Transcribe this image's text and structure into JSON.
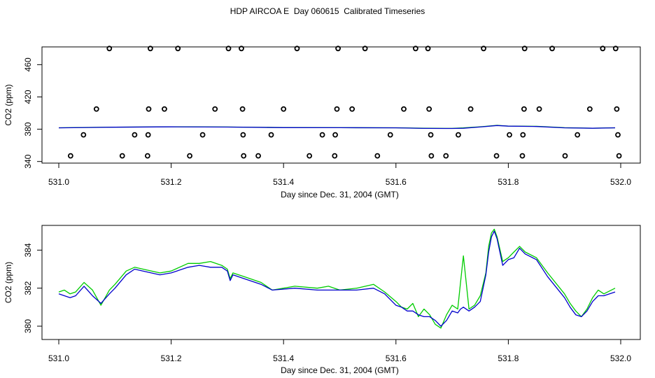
{
  "title": "HDP AIRCOA E  Day 060615  Calibrated Timeseries",
  "colors": {
    "series_a": "#00cc00",
    "series_b": "#0000cc",
    "points": "#000000"
  },
  "chart_data": [
    {
      "type": "scatter",
      "xlabel": "Day since Dec. 31, 2004 (GMT)",
      "ylabel": "CO2 (ppm)",
      "xlim": [
        531.0,
        532.0
      ],
      "ylim": [
        338,
        482
      ],
      "x_ticks": [
        "531.0",
        "531.2",
        "531.4",
        "531.6",
        "531.8",
        "532.0"
      ],
      "y_ticks": [
        "340",
        "380",
        "420",
        "460"
      ],
      "points": [
        {
          "x": 531.09,
          "y": 480
        },
        {
          "x": 531.163,
          "y": 480
        },
        {
          "x": 531.212,
          "y": 480
        },
        {
          "x": 531.302,
          "y": 480
        },
        {
          "x": 531.325,
          "y": 480
        },
        {
          "x": 531.424,
          "y": 480
        },
        {
          "x": 531.497,
          "y": 480
        },
        {
          "x": 531.545,
          "y": 480
        },
        {
          "x": 531.635,
          "y": 480
        },
        {
          "x": 531.657,
          "y": 480
        },
        {
          "x": 531.756,
          "y": 480
        },
        {
          "x": 531.829,
          "y": 480
        },
        {
          "x": 531.878,
          "y": 480
        },
        {
          "x": 531.968,
          "y": 480
        },
        {
          "x": 531.991,
          "y": 480
        },
        {
          "x": 531.067,
          "y": 405
        },
        {
          "x": 531.16,
          "y": 405
        },
        {
          "x": 531.188,
          "y": 405
        },
        {
          "x": 531.278,
          "y": 405
        },
        {
          "x": 531.327,
          "y": 405
        },
        {
          "x": 531.4,
          "y": 405
        },
        {
          "x": 531.495,
          "y": 405
        },
        {
          "x": 531.522,
          "y": 405
        },
        {
          "x": 531.614,
          "y": 405
        },
        {
          "x": 531.659,
          "y": 405
        },
        {
          "x": 531.733,
          "y": 405
        },
        {
          "x": 531.828,
          "y": 405
        },
        {
          "x": 531.855,
          "y": 405
        },
        {
          "x": 531.945,
          "y": 405
        },
        {
          "x": 531.993,
          "y": 405
        },
        {
          "x": 531.044,
          "y": 373
        },
        {
          "x": 531.135,
          "y": 373
        },
        {
          "x": 531.159,
          "y": 373
        },
        {
          "x": 531.256,
          "y": 373
        },
        {
          "x": 531.328,
          "y": 373
        },
        {
          "x": 531.378,
          "y": 373
        },
        {
          "x": 531.469,
          "y": 373
        },
        {
          "x": 531.492,
          "y": 373
        },
        {
          "x": 531.59,
          "y": 373
        },
        {
          "x": 531.662,
          "y": 373
        },
        {
          "x": 531.711,
          "y": 373
        },
        {
          "x": 531.802,
          "y": 373
        },
        {
          "x": 531.826,
          "y": 373
        },
        {
          "x": 531.923,
          "y": 373
        },
        {
          "x": 531.995,
          "y": 373
        },
        {
          "x": 531.021,
          "y": 347
        },
        {
          "x": 531.113,
          "y": 347
        },
        {
          "x": 531.158,
          "y": 347
        },
        {
          "x": 531.233,
          "y": 347
        },
        {
          "x": 531.329,
          "y": 347
        },
        {
          "x": 531.355,
          "y": 347
        },
        {
          "x": 531.446,
          "y": 347
        },
        {
          "x": 531.491,
          "y": 347
        },
        {
          "x": 531.567,
          "y": 347
        },
        {
          "x": 531.663,
          "y": 347
        },
        {
          "x": 531.689,
          "y": 347
        },
        {
          "x": 531.779,
          "y": 347
        },
        {
          "x": 531.825,
          "y": 347
        },
        {
          "x": 531.901,
          "y": 347
        },
        {
          "x": 531.997,
          "y": 347
        }
      ],
      "series": [
        {
          "color": "#00cc00",
          "x": [
            531.0,
            531.1,
            531.2,
            531.3,
            531.4,
            531.5,
            531.6,
            531.65,
            531.7,
            531.72,
            531.75,
            531.78,
            531.8,
            531.85,
            531.9,
            531.95,
            531.99
          ],
          "values": [
            381.8,
            382.6,
            383.0,
            382.8,
            382.1,
            381.9,
            381.8,
            381.2,
            381.0,
            381.6,
            383.0,
            384.8,
            383.9,
            383.6,
            381.9,
            381.3,
            381.8
          ]
        },
        {
          "color": "#0000cc",
          "x": [
            531.0,
            531.1,
            531.2,
            531.3,
            531.4,
            531.5,
            531.6,
            531.65,
            531.7,
            531.72,
            531.75,
            531.78,
            531.8,
            531.85,
            531.9,
            531.95,
            531.99
          ],
          "values": [
            381.7,
            382.5,
            382.9,
            382.7,
            382.0,
            381.9,
            381.7,
            381.0,
            380.9,
            381.2,
            382.8,
            384.6,
            383.8,
            383.4,
            381.7,
            381.2,
            381.7
          ]
        }
      ]
    },
    {
      "type": "line",
      "xlabel": "Day since Dec. 31, 2004 (GMT)",
      "ylabel": "CO2 (ppm)",
      "xlim": [
        531.0,
        532.0
      ],
      "ylim": [
        379.3,
        385.3
      ],
      "x_ticks": [
        "531.0",
        "531.2",
        "531.4",
        "531.6",
        "531.8",
        "532.0"
      ],
      "y_ticks": [
        "380",
        "382",
        "384"
      ],
      "series": [
        {
          "color": "#00cc00",
          "x": [
            531.0,
            531.01,
            531.02,
            531.03,
            531.045,
            531.06,
            531.075,
            531.09,
            531.1,
            531.12,
            531.135,
            531.15,
            531.18,
            531.2,
            531.23,
            531.25,
            531.27,
            531.29,
            531.3,
            531.305,
            531.31,
            531.33,
            531.36,
            531.38,
            531.42,
            531.46,
            531.48,
            531.5,
            531.53,
            531.56,
            531.58,
            531.6,
            531.61,
            531.62,
            531.63,
            531.64,
            531.65,
            531.66,
            531.67,
            531.68,
            531.69,
            531.7,
            531.71,
            531.715,
            531.72,
            531.73,
            531.74,
            531.75,
            531.76,
            531.765,
            531.77,
            531.775,
            531.78,
            531.79,
            531.8,
            531.81,
            531.82,
            531.83,
            531.85,
            531.87,
            531.9,
            531.91,
            531.92,
            531.93,
            531.94,
            531.95,
            531.96,
            531.97,
            531.99
          ],
          "values": [
            381.8,
            381.9,
            381.7,
            381.8,
            382.3,
            381.9,
            381.1,
            381.9,
            382.2,
            382.9,
            383.1,
            383.0,
            382.8,
            382.9,
            383.3,
            383.3,
            383.4,
            383.2,
            383.0,
            382.5,
            382.8,
            382.6,
            382.3,
            381.9,
            382.1,
            382.0,
            382.1,
            381.9,
            382.0,
            382.2,
            381.8,
            381.3,
            381.0,
            380.9,
            381.2,
            380.5,
            380.9,
            380.6,
            380.1,
            379.9,
            380.6,
            381.1,
            380.9,
            382.3,
            383.7,
            380.9,
            381.1,
            381.6,
            382.8,
            384.2,
            384.9,
            385.1,
            384.7,
            383.4,
            383.6,
            383.9,
            384.2,
            383.9,
            383.6,
            382.8,
            381.7,
            381.2,
            380.8,
            380.5,
            380.9,
            381.5,
            381.9,
            381.7,
            382.0
          ]
        },
        {
          "color": "#0000cc",
          "x": [
            531.0,
            531.01,
            531.02,
            531.03,
            531.045,
            531.06,
            531.075,
            531.09,
            531.1,
            531.12,
            531.135,
            531.15,
            531.18,
            531.2,
            531.23,
            531.25,
            531.27,
            531.29,
            531.3,
            531.305,
            531.31,
            531.33,
            531.36,
            531.38,
            531.42,
            531.46,
            531.48,
            531.5,
            531.53,
            531.56,
            531.58,
            531.6,
            531.61,
            531.62,
            531.63,
            531.64,
            531.65,
            531.66,
            531.67,
            531.68,
            531.69,
            531.7,
            531.71,
            531.715,
            531.72,
            531.73,
            531.74,
            531.75,
            531.76,
            531.765,
            531.77,
            531.775,
            531.78,
            531.79,
            531.8,
            531.81,
            531.82,
            531.83,
            531.85,
            531.87,
            531.9,
            531.91,
            531.92,
            531.93,
            531.94,
            531.95,
            531.96,
            531.97,
            531.99
          ],
          "values": [
            381.7,
            381.6,
            381.5,
            381.6,
            382.1,
            381.6,
            381.2,
            381.7,
            382.0,
            382.7,
            383.0,
            382.9,
            382.7,
            382.8,
            383.1,
            383.2,
            383.1,
            383.1,
            382.9,
            382.4,
            382.7,
            382.5,
            382.2,
            381.9,
            382.0,
            381.9,
            381.9,
            381.9,
            381.9,
            382.0,
            381.7,
            381.1,
            381.0,
            380.8,
            380.8,
            380.6,
            380.5,
            380.5,
            380.3,
            380.0,
            380.3,
            380.8,
            380.7,
            380.9,
            381.0,
            380.8,
            381.0,
            381.3,
            382.7,
            383.9,
            384.7,
            385.0,
            384.6,
            383.2,
            383.5,
            383.6,
            384.1,
            383.8,
            383.5,
            382.6,
            381.5,
            381.0,
            380.6,
            380.5,
            380.8,
            381.3,
            381.6,
            381.6,
            381.8
          ]
        }
      ]
    }
  ]
}
